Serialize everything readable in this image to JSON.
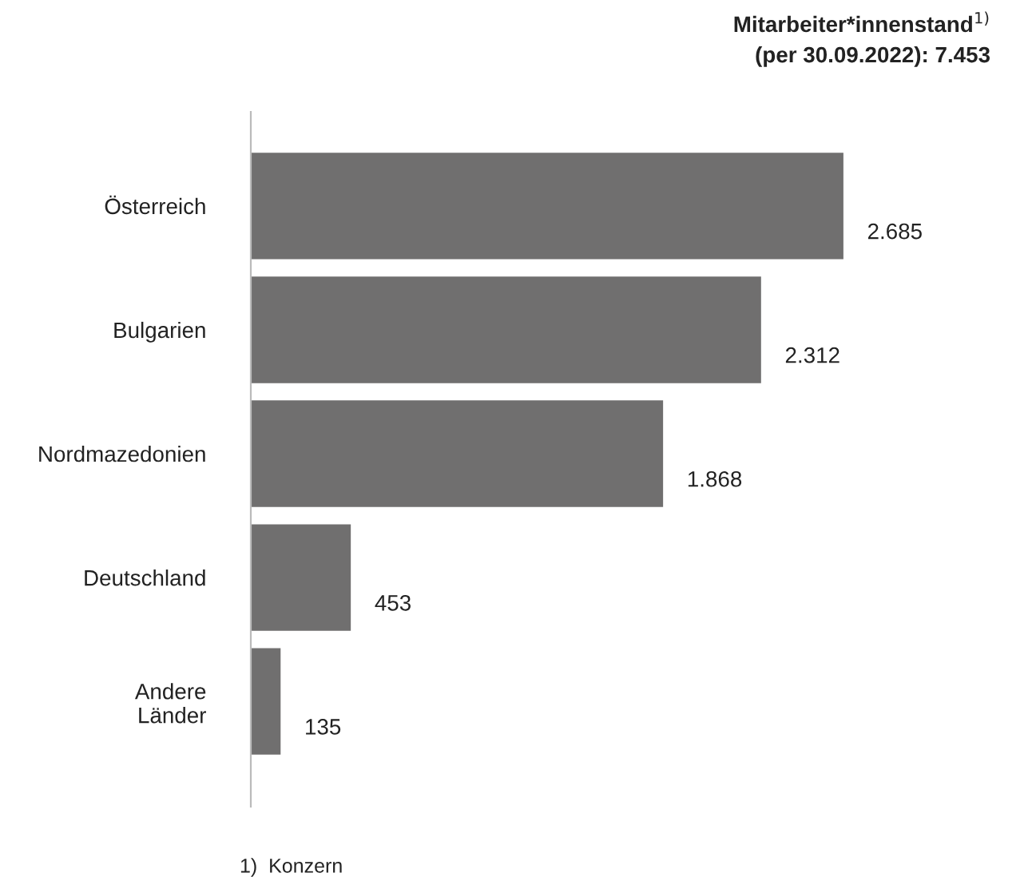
{
  "chart_data": {
    "type": "bar",
    "orientation": "horizontal",
    "title": "Mitarbeiter*innenstand$^{1)}$\n(per 30.09.2022): 7.453",
    "categories": [
      "Österreich",
      "Bulgarien",
      "Nordmazedonien",
      "Deutschland",
      "Andere\nLänder"
    ],
    "values": [
      2685,
      2312,
      1868,
      453,
      135
    ],
    "value_labels": [
      "2.685",
      "2.312",
      "1.868",
      "453",
      "135"
    ],
    "color": "#706f6f",
    "annotations": [
      "1)  Konzern"
    ],
    "grid": false,
    "legend": false,
    "tick_labels": "y"
  }
}
